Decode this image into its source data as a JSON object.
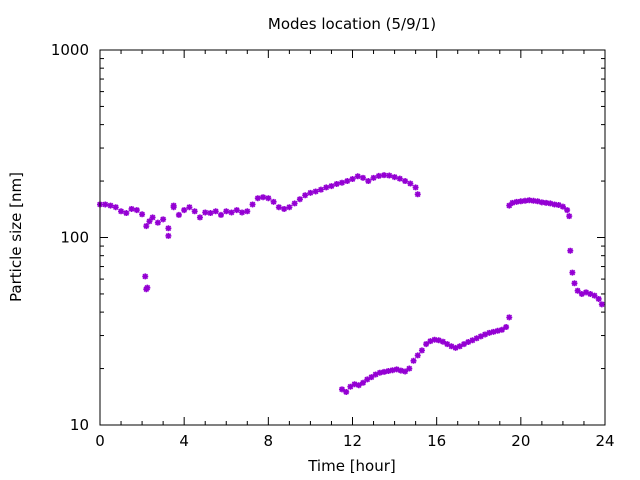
{
  "chart_data": {
    "type": "scatter",
    "title": "Modes location (5/9/1)",
    "xlabel": "Time [hour]",
    "ylabel": "Particle size [nm]",
    "xlim": [
      0,
      24
    ],
    "ylim": [
      10,
      1000
    ],
    "yscale": "log",
    "grid": false,
    "marker_color": "#9400d3",
    "marker": "star",
    "xticks": [
      {
        "value": 0,
        "label": "0"
      },
      {
        "value": 4,
        "label": "4"
      },
      {
        "value": 8,
        "label": "8"
      },
      {
        "value": 12,
        "label": "12"
      },
      {
        "value": 16,
        "label": "16"
      },
      {
        "value": 20,
        "label": "20"
      },
      {
        "value": 24,
        "label": "24"
      }
    ],
    "yticks": [
      {
        "value": 10,
        "label": "10"
      },
      {
        "value": 100,
        "label": "100"
      },
      {
        "value": 1000,
        "label": "1000"
      }
    ],
    "series": [
      {
        "points": [
          [
            0.0,
            150
          ],
          [
            0.25,
            150
          ],
          [
            0.5,
            148
          ],
          [
            0.75,
            145
          ],
          [
            1.0,
            138
          ],
          [
            1.25,
            135
          ],
          [
            1.5,
            142
          ],
          [
            1.75,
            140
          ],
          [
            2.0,
            133
          ],
          [
            2.2,
            115
          ],
          [
            2.35,
            122
          ],
          [
            2.5,
            128
          ],
          [
            2.75,
            120
          ],
          [
            3.0,
            125
          ],
          [
            3.25,
            112
          ],
          [
            3.5,
            145
          ],
          [
            3.75,
            132
          ],
          [
            4.0,
            140
          ],
          [
            4.25,
            145
          ],
          [
            4.5,
            138
          ],
          [
            4.75,
            128
          ],
          [
            5.0,
            136
          ],
          [
            5.25,
            135
          ],
          [
            5.5,
            138
          ],
          [
            5.75,
            132
          ],
          [
            6.0,
            138
          ],
          [
            6.25,
            136
          ],
          [
            6.5,
            140
          ],
          [
            6.75,
            136
          ],
          [
            7.0,
            138
          ],
          [
            7.25,
            150
          ],
          [
            7.5,
            162
          ],
          [
            7.75,
            164
          ],
          [
            8.0,
            162
          ],
          [
            8.25,
            155
          ],
          [
            8.5,
            145
          ],
          [
            8.75,
            142
          ],
          [
            9.0,
            145
          ],
          [
            9.25,
            152
          ],
          [
            9.5,
            160
          ],
          [
            9.75,
            168
          ],
          [
            10.0,
            173
          ],
          [
            10.25,
            176
          ],
          [
            10.5,
            180
          ],
          [
            10.75,
            185
          ],
          [
            11.0,
            188
          ],
          [
            11.25,
            193
          ],
          [
            11.5,
            196
          ],
          [
            11.75,
            200
          ],
          [
            12.0,
            205
          ],
          [
            12.25,
            212
          ],
          [
            12.5,
            208
          ],
          [
            12.75,
            200
          ],
          [
            13.0,
            208
          ],
          [
            13.25,
            213
          ],
          [
            13.5,
            215
          ],
          [
            13.75,
            214
          ],
          [
            14.0,
            210
          ],
          [
            14.25,
            206
          ],
          [
            14.5,
            200
          ],
          [
            14.75,
            194
          ],
          [
            15.0,
            185
          ],
          [
            15.1,
            170
          ]
        ]
      },
      {
        "points": [
          [
            2.15,
            62
          ],
          [
            2.2,
            53
          ],
          [
            2.25,
            54
          ],
          [
            3.25,
            102
          ],
          [
            3.5,
            148
          ]
        ]
      },
      {
        "points": [
          [
            11.5,
            15.5
          ],
          [
            11.7,
            15
          ],
          [
            11.9,
            16
          ],
          [
            12.1,
            16.5
          ],
          [
            12.3,
            16.3
          ],
          [
            12.5,
            16.8
          ],
          [
            12.7,
            17.5
          ],
          [
            12.9,
            18
          ],
          [
            13.1,
            18.6
          ],
          [
            13.3,
            19
          ],
          [
            13.5,
            19.2
          ],
          [
            13.7,
            19.4
          ],
          [
            13.9,
            19.6
          ],
          [
            14.1,
            19.8
          ],
          [
            14.3,
            19.5
          ],
          [
            14.5,
            19.3
          ],
          [
            14.7,
            20
          ],
          [
            14.9,
            22
          ],
          [
            15.1,
            23.5
          ],
          [
            15.3,
            25
          ],
          [
            15.5,
            27
          ],
          [
            15.7,
            28
          ],
          [
            15.9,
            28.5
          ],
          [
            16.1,
            28.3
          ],
          [
            16.3,
            27.8
          ],
          [
            16.5,
            27
          ],
          [
            16.7,
            26.3
          ],
          [
            16.9,
            25.8
          ],
          [
            17.1,
            26.3
          ],
          [
            17.3,
            27
          ],
          [
            17.5,
            27.7
          ],
          [
            17.7,
            28.3
          ],
          [
            17.9,
            29
          ],
          [
            18.1,
            29.7
          ],
          [
            18.3,
            30.4
          ],
          [
            18.5,
            31
          ],
          [
            18.7,
            31.4
          ],
          [
            18.9,
            31.8
          ],
          [
            19.1,
            32.2
          ],
          [
            19.3,
            33.3
          ],
          [
            19.45,
            37.5
          ]
        ]
      },
      {
        "points": [
          [
            19.45,
            148
          ],
          [
            19.6,
            153
          ],
          [
            19.8,
            155
          ],
          [
            20.0,
            156
          ],
          [
            20.2,
            157
          ],
          [
            20.4,
            158
          ],
          [
            20.6,
            157
          ],
          [
            20.8,
            156
          ],
          [
            21.0,
            154
          ],
          [
            21.2,
            153
          ],
          [
            21.4,
            152
          ],
          [
            21.6,
            150
          ],
          [
            21.8,
            149
          ],
          [
            22.0,
            146
          ],
          [
            22.2,
            140
          ],
          [
            22.3,
            130
          ],
          [
            22.35,
            85
          ],
          [
            22.45,
            65
          ],
          [
            22.55,
            57
          ],
          [
            22.7,
            52
          ],
          [
            22.9,
            50
          ],
          [
            23.1,
            51
          ],
          [
            23.3,
            50
          ],
          [
            23.5,
            49
          ],
          [
            23.7,
            47
          ],
          [
            23.85,
            44
          ]
        ]
      }
    ]
  }
}
